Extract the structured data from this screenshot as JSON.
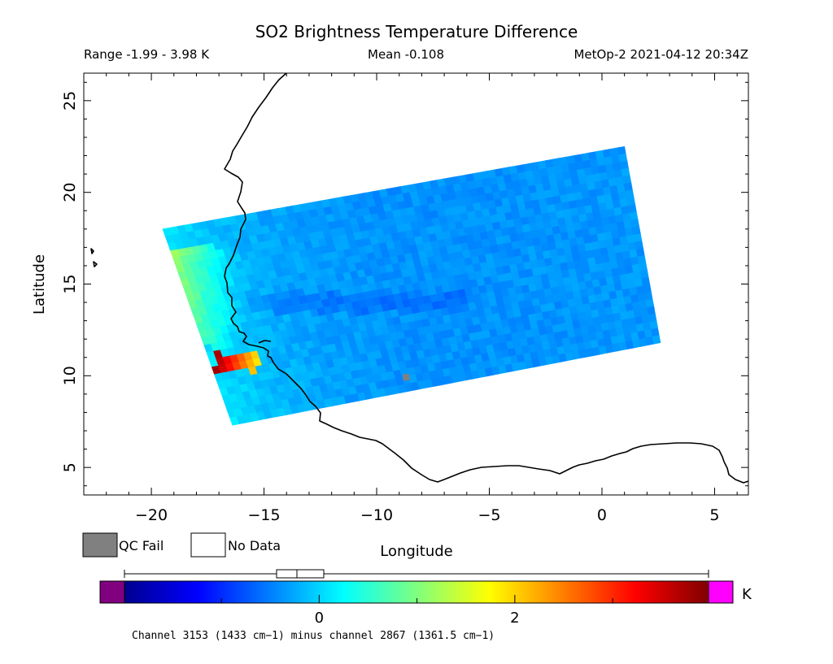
{
  "chart_data": {
    "type": "heatmap",
    "title": "SO2 Brightness Temperature Difference",
    "header": {
      "range": "Range -1.99 - 3.98 K",
      "mean": "Mean -0.108",
      "satellite_time": "MetOp-2 2021-04-12 20:34Z"
    },
    "xlabel": "Longitude",
    "ylabel": "Latitude",
    "xlim": [
      -23,
      6.5
    ],
    "ylim": [
      3.5,
      26.5
    ],
    "x_ticks": [
      -20,
      -15,
      -10,
      -5,
      0,
      5
    ],
    "x_tick_labels": [
      "−20",
      "−15",
      "−10",
      "−5",
      "0",
      "5"
    ],
    "y_ticks": [
      5,
      10,
      15,
      20,
      25
    ],
    "y_tick_labels": [
      "5",
      "10",
      "15",
      "20",
      "25"
    ],
    "swath_corners_lonlat": [
      [
        -19.5,
        18.0
      ],
      [
        1.0,
        22.5
      ],
      [
        2.6,
        11.8
      ],
      [
        -16.4,
        7.3
      ]
    ],
    "colorbar": {
      "range": [
        -1.99,
        3.98
      ],
      "unit": "K",
      "tick_values": [
        0,
        2
      ],
      "tick_labels": [
        "0",
        "2"
      ],
      "caption": "Channel 3153 (1433 cm−1) minus channel 2867 (1361.5 cm−1)",
      "below_range_color": "#800080",
      "above_range_color": "#ff00ff"
    },
    "legend": [
      {
        "label": "QC Fail",
        "color": "#808080"
      },
      {
        "label": "No Data",
        "color": "#ffffff"
      }
    ],
    "features": [
      {
        "name": "high SO2 signal",
        "lon_range": [
          -17.2,
          -15.2
        ],
        "lat_range": [
          10.2,
          11.2
        ],
        "peak_value": 3.9
      },
      {
        "name": "elevated western edge",
        "lon_range": [
          -19.0,
          -16.0
        ],
        "lat_range": [
          11.5,
          17.0
        ],
        "value": 1.3
      }
    ]
  }
}
